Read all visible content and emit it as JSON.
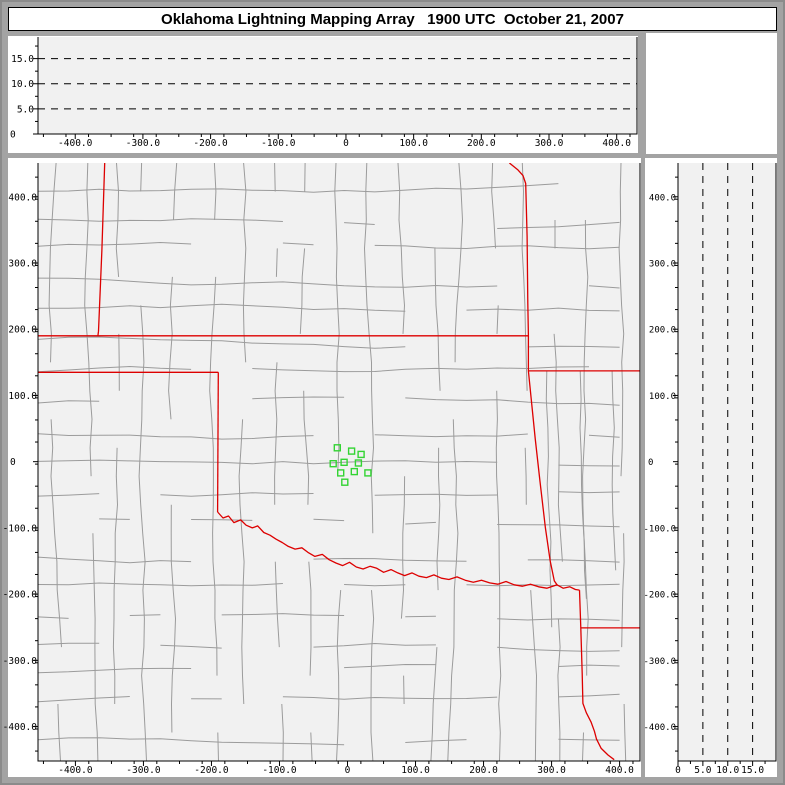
{
  "title": "Oklahoma Lightning Mapping Array   1900 UTC  October 21, 2007",
  "colors": {
    "background": "#a3a3a3",
    "frame": "#8b8b8b",
    "panel": "#ffffff",
    "plot_bg": "#f1f1f1",
    "axis": "#000000",
    "county_line": "#9b9b9b",
    "state_border": "#dd0000",
    "lightning": "#33d433"
  },
  "axes": {
    "east_west": {
      "tick_values": [
        -400,
        -300,
        -200,
        -100,
        0,
        100,
        200,
        300,
        400
      ],
      "tick_labels": [
        "-400.0",
        "-300.0",
        "-200.0",
        "-100.0",
        "0",
        "100.0",
        "200.0",
        "300.0",
        "400.0"
      ],
      "minor_step_km": 33.333,
      "range_km": [
        -455,
        430
      ]
    },
    "north_south": {
      "tick_values": [
        400,
        300,
        200,
        100,
        0,
        -100,
        -200,
        -300,
        -400
      ],
      "tick_labels": [
        "400.0",
        "300.0",
        "200.0",
        "100.0",
        "0",
        "-100.0",
        "-200.0",
        "-300.0",
        "-400.0"
      ],
      "minor_step_km": 33.333,
      "range_km": [
        -452,
        451
      ]
    },
    "altitude": {
      "tick_values": [
        0,
        5,
        10,
        15
      ],
      "tick_labels": [
        "0",
        "5.0",
        "10.0",
        "15.0"
      ],
      "minor_values": [
        2.5,
        7.5,
        12.5,
        17.5
      ],
      "gridlines": [
        5,
        10,
        15
      ],
      "range_km": [
        0,
        19.3
      ]
    }
  },
  "chart_data": [
    {
      "type": "scatter",
      "panel": "altitude-vs-east-west",
      "xlim": [
        -455,
        430
      ],
      "ylim": [
        0,
        19.3
      ],
      "x_ticks": [
        -400,
        -300,
        -200,
        -100,
        0,
        100,
        200,
        300,
        400
      ],
      "y_ticks": [
        0,
        5,
        10,
        15
      ],
      "gridlines_y": [
        5,
        10,
        15
      ],
      "grid_style": "dashed",
      "points": []
    },
    {
      "type": "scatter",
      "panel": "plan-view-map",
      "xlim": [
        -455,
        430
      ],
      "ylim": [
        -452,
        451
      ],
      "x_ticks": [
        -400,
        -300,
        -200,
        -100,
        0,
        100,
        200,
        300,
        400
      ],
      "y_ticks": [
        400,
        300,
        200,
        100,
        0,
        -100,
        -200,
        -300,
        -400
      ],
      "marker": "open-square",
      "marker_color": "#33d433",
      "points": [
        [
          -15,
          21
        ],
        [
          6,
          16
        ],
        [
          20,
          11
        ],
        [
          -21,
          -3
        ],
        [
          -5,
          -1
        ],
        [
          16,
          -2
        ],
        [
          -10,
          -17
        ],
        [
          10,
          -15
        ],
        [
          30,
          -17
        ],
        [
          -4,
          -31
        ]
      ],
      "state_borders": [
        {
          "name": "colorado-kansas-border",
          "points": [
            [
              -357,
              451
            ],
            [
              -361,
              320
            ],
            [
              -366,
              197
            ],
            [
              -367,
              190
            ]
          ]
        },
        {
          "name": "kansas-oklahoma-border",
          "points": [
            [
              -455,
              190
            ],
            [
              266,
              190
            ]
          ]
        },
        {
          "name": "texas-oklahoma-panhandle-border",
          "points": [
            [
              -455,
              135
            ],
            [
              -190,
              135
            ]
          ]
        },
        {
          "name": "oklahoma-west-border",
          "points": [
            [
              -190,
              135
            ],
            [
              -191,
              -76
            ]
          ]
        },
        {
          "name": "missouri-arkansas-border",
          "points": [
            [
              266,
              137
            ],
            [
              430,
              137
            ]
          ]
        },
        {
          "name": "oklahoma-east-border",
          "points": [
            [
              238,
              451
            ],
            [
              250,
              441
            ],
            [
              258,
              432
            ],
            [
              262,
              420
            ],
            [
              264,
              340
            ],
            [
              265,
              240
            ],
            [
              266,
              190
            ],
            [
              266,
              137
            ],
            [
              270,
              95
            ],
            [
              276,
              35
            ],
            [
              283,
              -30
            ],
            [
              291,
              -100
            ],
            [
              298,
              -150
            ],
            [
              304,
              -180
            ],
            [
              308,
              -186
            ]
          ]
        },
        {
          "name": "red-river-border",
          "points": [
            [
              -191,
              -76
            ],
            [
              -183,
              -85
            ],
            [
              -175,
              -82
            ],
            [
              -167,
              -92
            ],
            [
              -157,
              -88
            ],
            [
              -149,
              -96
            ],
            [
              -140,
              -100
            ],
            [
              -132,
              -97
            ],
            [
              -123,
              -107
            ],
            [
              -114,
              -111
            ],
            [
              -105,
              -117
            ],
            [
              -96,
              -122
            ],
            [
              -87,
              -128
            ],
            [
              -77,
              -132
            ],
            [
              -67,
              -130
            ],
            [
              -58,
              -137
            ],
            [
              -48,
              -143
            ],
            [
              -37,
              -140
            ],
            [
              -27,
              -148
            ],
            [
              -17,
              -153
            ],
            [
              -7,
              -157
            ],
            [
              3,
              -152
            ],
            [
              13,
              -159
            ],
            [
              23,
              -162
            ],
            [
              33,
              -158
            ],
            [
              43,
              -161
            ],
            [
              53,
              -167
            ],
            [
              64,
              -163
            ],
            [
              74,
              -168
            ],
            [
              84,
              -172
            ],
            [
              95,
              -168
            ],
            [
              105,
              -173
            ],
            [
              116,
              -175
            ],
            [
              127,
              -171
            ],
            [
              138,
              -176
            ],
            [
              149,
              -178
            ],
            [
              161,
              -174
            ],
            [
              173,
              -179
            ],
            [
              185,
              -182
            ],
            [
              197,
              -179
            ],
            [
              209,
              -183
            ],
            [
              221,
              -185
            ],
            [
              233,
              -181
            ],
            [
              245,
              -186
            ],
            [
              257,
              -188
            ],
            [
              269,
              -185
            ],
            [
              281,
              -189
            ],
            [
              293,
              -191
            ],
            [
              305,
              -187
            ],
            [
              308,
              -186
            ],
            [
              317,
              -191
            ],
            [
              327,
              -189
            ],
            [
              335,
              -193
            ],
            [
              341,
              -194
            ]
          ]
        },
        {
          "name": "arkansas-louisiana-border",
          "points": [
            [
              343,
              -251
            ],
            [
              430,
              -251
            ]
          ]
        },
        {
          "name": "texas-arkansas-louisiana-border",
          "points": [
            [
              341,
              -194
            ],
            [
              343,
              -251
            ],
            [
              345,
              -320
            ],
            [
              346,
              -365
            ],
            [
              351,
              -379
            ],
            [
              358,
              -393
            ],
            [
              363,
              -407
            ],
            [
              366,
              -419
            ],
            [
              373,
              -433
            ],
            [
              383,
              -443
            ],
            [
              392,
              -450
            ]
          ]
        }
      ],
      "county_grid": {
        "seed": 20071021,
        "spacing_km": 46
      }
    },
    {
      "type": "scatter",
      "panel": "altitude-vs-north-south",
      "xlim": [
        0,
        19.7
      ],
      "ylim": [
        -452,
        451
      ],
      "x_ticks": [
        0,
        5,
        10,
        15
      ],
      "y_ticks": [
        400,
        300,
        200,
        100,
        0,
        -100,
        -200,
        -300,
        -400
      ],
      "gridlines_x": [
        5,
        10,
        15
      ],
      "grid_style": "dashed",
      "points": []
    }
  ]
}
